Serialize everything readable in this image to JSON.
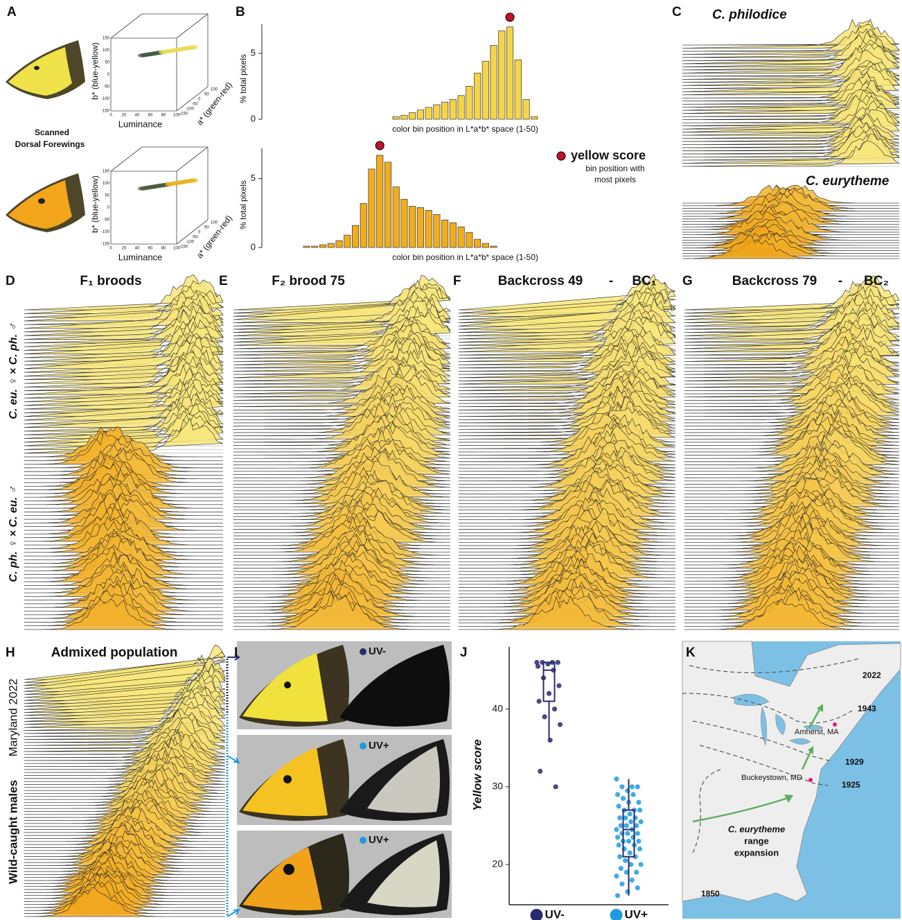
{
  "panel_letters": [
    "A",
    "B",
    "C",
    "D",
    "E",
    "F",
    "G",
    "H",
    "I",
    "J",
    "K"
  ],
  "panel_a": {
    "caption": [
      "Scanned",
      "Dorsal Forewings"
    ],
    "x_label": "Luminance",
    "y_label": "b* (blue-yellow)",
    "z_label": "a* (green-red)",
    "luminance_ticks": [
      0,
      20,
      40,
      60,
      80,
      100
    ],
    "b_ticks": [
      -150,
      -100,
      -50,
      0,
      50,
      100,
      150
    ],
    "a_ticks": [
      -150,
      -100,
      -50,
      0,
      50,
      100
    ]
  },
  "panel_b_legend": {
    "label": "yellow score",
    "note": [
      "bin position with",
      "most pixels"
    ]
  },
  "panel_c": {
    "labels": [
      "C. philodice",
      "C. eurytheme"
    ]
  },
  "panel_d": {
    "title": "F₁ broods",
    "cross_labels": [
      "C. eu. ♀ × C. ph. ♂",
      "C. ph. ♀ × C. eu. ♂"
    ]
  },
  "panel_e": {
    "title": "F₂ brood 75"
  },
  "panel_f": {
    "title": "Backcross 49",
    "separator": "-",
    "code": "BC₁"
  },
  "panel_g": {
    "title": "Backcross 79",
    "separator": "-",
    "code": "BC₂"
  },
  "panel_h": {
    "title": "Admixed population",
    "side_labels": [
      "Wild-caught males",
      "Maryland 2022"
    ]
  },
  "panel_i": {
    "labels": [
      "UV-",
      "UV+",
      "UV+"
    ]
  },
  "panel_k": {
    "years": [
      "2022",
      "1943",
      "1929",
      "1925",
      "1850"
    ],
    "places": [
      "Amherst, MA",
      "Buckeystown, MD"
    ],
    "caption": [
      "C. eurytheme",
      "range",
      "expansion"
    ]
  },
  "chart_data": [
    {
      "type": "bar",
      "y_label": "% total pixels",
      "x_label": "color bin position in L*a*b* space (1-50)",
      "color": "#f5d547",
      "values": [
        0,
        0,
        0,
        0,
        0,
        0,
        0,
        0,
        0,
        0,
        0,
        0,
        0,
        0,
        0,
        0,
        0.2,
        0.3,
        0.5,
        0.7,
        0.9,
        1.1,
        1.3,
        1.5,
        1.8,
        2.5,
        3.5,
        4.4,
        5.6,
        6.7,
        7.0,
        4.5,
        1.5,
        0.2,
        0,
        0,
        0,
        0,
        0,
        0,
        0,
        0,
        0,
        0,
        0,
        0,
        0,
        0,
        0,
        0
      ],
      "ylim": [
        0,
        7.2
      ],
      "yticks": [
        0,
        5
      ]
    },
    {
      "type": "bar",
      "y_label": "% total pixels",
      "x_label": "color bin position in L*a*b* space (1-50)",
      "color": "#f2ad1c",
      "values": [
        0,
        0,
        0,
        0,
        0,
        0.1,
        0.1,
        0.2,
        0.3,
        0.5,
        0.9,
        1.6,
        3.2,
        5.7,
        6.7,
        6.2,
        4.4,
        3.5,
        3.0,
        2.9,
        2.7,
        2.4,
        2.0,
        1.8,
        1.5,
        1.1,
        0.6,
        0.3,
        0.1,
        0,
        0,
        0,
        0,
        0,
        0,
        0,
        0,
        0,
        0,
        0,
        0,
        0,
        0,
        0,
        0,
        0,
        0,
        0,
        0,
        0
      ],
      "ylim": [
        0,
        7.2
      ],
      "yticks": [
        0,
        5
      ]
    },
    {
      "type": "box",
      "y_label": "Yellow score",
      "categories": [
        "UV-",
        "UV+"
      ],
      "colors": [
        "#2a2a6e",
        "#1e9be0"
      ],
      "box": [
        {
          "whislo": 36,
          "q1": 41,
          "med": 45,
          "q3": 46,
          "whishi": 46
        },
        {
          "whislo": 16,
          "q1": 21,
          "med": 24.5,
          "q3": 27,
          "whishi": 31
        }
      ],
      "points": [
        [
          46,
          46,
          46,
          46,
          45.8,
          45.5,
          45,
          44,
          43,
          42,
          41,
          40,
          39,
          38,
          36,
          32,
          30
        ],
        [
          31,
          30,
          30,
          30,
          29.5,
          29,
          29,
          28.5,
          28,
          28,
          27.5,
          27,
          27,
          27,
          26.5,
          26,
          26,
          26,
          25.5,
          25.5,
          25,
          25,
          25,
          24.5,
          24.5,
          24,
          24,
          24,
          23.5,
          23.5,
          23,
          23,
          23,
          22.5,
          22.5,
          22,
          22,
          21.5,
          21,
          21,
          20.5,
          20,
          20,
          19.5,
          19,
          19,
          18.5,
          18,
          17.5,
          17,
          16.5,
          16
        ]
      ],
      "ylim": [
        15,
        48
      ],
      "yticks": [
        20,
        30,
        40
      ]
    }
  ]
}
